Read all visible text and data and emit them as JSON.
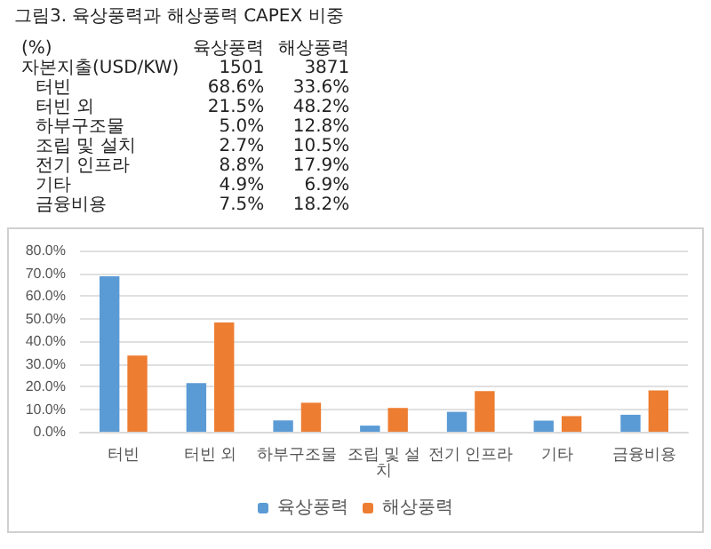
{
  "chart_data": {
    "type": "bar",
    "title": "그림3. 육상풍력과 해상풍력 CAPEX 비중",
    "categories": [
      "터빈",
      "터빈 외",
      "하부구조물",
      "조립 및 설치",
      "전기 인프라",
      "기타",
      "금융비용"
    ],
    "series": [
      {
        "name": "육상풍력",
        "color": "#5b9bd5",
        "values": [
          68.6,
          21.5,
          5.0,
          2.7,
          8.8,
          4.9,
          7.5
        ]
      },
      {
        "name": "해상풍력",
        "color": "#ed7d31",
        "values": [
          33.6,
          48.2,
          12.8,
          10.5,
          17.9,
          6.9,
          18.2
        ]
      }
    ],
    "ylim": [
      0,
      80
    ],
    "yticks": [
      {
        "value": 0,
        "label": "0.0%"
      },
      {
        "value": 10,
        "label": "10.0%"
      },
      {
        "value": 20,
        "label": "20.0%"
      },
      {
        "value": 30,
        "label": "30.0%"
      },
      {
        "value": 40,
        "label": "40.0%"
      },
      {
        "value": 50,
        "label": "50.0%"
      },
      {
        "value": 60,
        "label": "60.0%"
      },
      {
        "value": 70,
        "label": "70.0%"
      },
      {
        "value": 80,
        "label": "80.0%"
      }
    ],
    "grid": "y",
    "legend": "bottom",
    "annotations": [
      "(%)",
      "자본지출(USD/KW)",
      "1501",
      "3871",
      "68.6%",
      "33.6%",
      "21.5%",
      "48.2%",
      "5.0%",
      "12.8%",
      "2.7%",
      "10.5%",
      "8.8%",
      "17.9%",
      "4.9%",
      "6.9%",
      "7.5%",
      "18.2%"
    ]
  }
}
